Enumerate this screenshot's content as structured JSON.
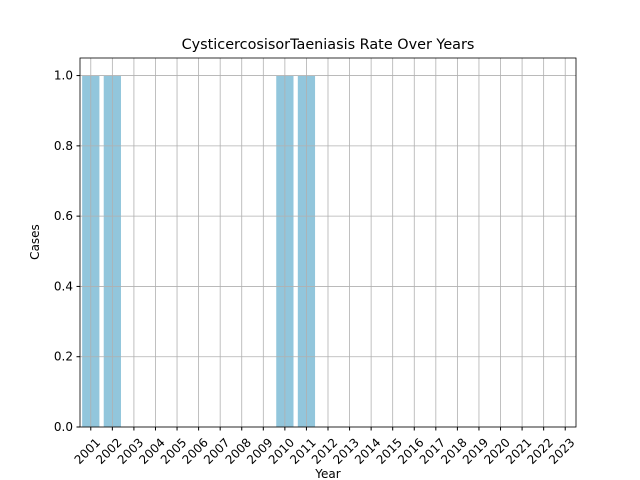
{
  "chart_data": {
    "type": "bar",
    "title": "CysticercosisorTaeniasis Rate Over Years",
    "x_label": "Year",
    "y_label": "Cases",
    "categories": [
      "2001",
      "2002",
      "2003",
      "2004",
      "2005",
      "2006",
      "2007",
      "2008",
      "2009",
      "2010",
      "2011",
      "2012",
      "2013",
      "2014",
      "2015",
      "2016",
      "2017",
      "2018",
      "2019",
      "2020",
      "2021",
      "2022",
      "2023"
    ],
    "values": [
      1,
      1,
      0,
      0,
      0,
      0,
      0,
      0,
      0,
      1,
      1,
      0,
      0,
      0,
      0,
      0,
      0,
      0,
      0,
      0,
      0,
      0,
      0
    ],
    "color": "#92c6dc",
    "ylim": [
      0,
      1.05
    ],
    "yticks": [
      {
        "value": 0,
        "label": "0.0"
      },
      {
        "value": 0.2,
        "label": "0.2"
      },
      {
        "value": 0.4,
        "label": "0.4"
      },
      {
        "value": 0.6,
        "label": "0.6"
      },
      {
        "value": 0.8,
        "label": "0.8"
      },
      {
        "value": 1,
        "label": "1.0"
      }
    ],
    "grid": true
  }
}
